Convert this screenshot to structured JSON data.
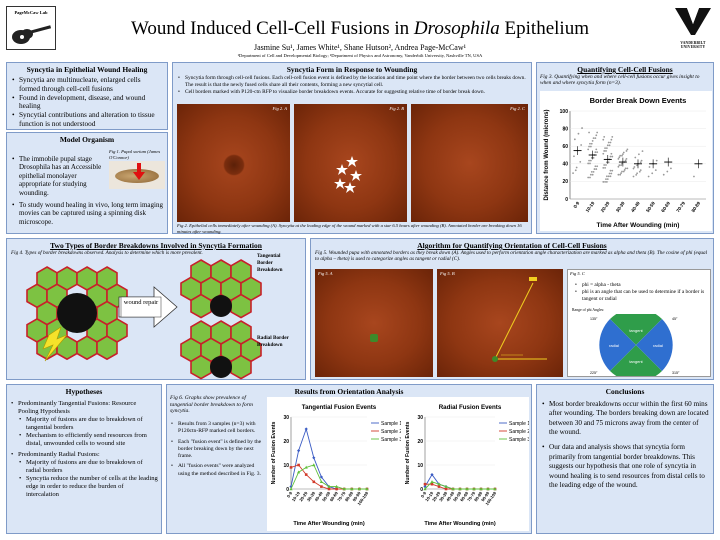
{
  "header": {
    "title_pre": "Wound Induced Cell-Cell Fusions in ",
    "title_em": "Drosophila",
    "title_post": " Epithelium",
    "authors": "Jasmine Su¹, James White¹, Shane Hutson², Andrea Page-McCaw¹",
    "affiliation": "¹Department of Cell and Developmental Biology; ²Department of Physics and Astronomy, Vanderbilt University, Nashville TN, USA",
    "left_logo": "PageMcCaw Lab",
    "right_logo": "VANDERBILT UNIVERSITY"
  },
  "syncytia_epithelial": {
    "title": "Syncytia in Epithelial Wound Healing",
    "bullets": [
      "Syncytia are multinucleate, enlarged cells formed through cell-cell fusions",
      "Found in development, disease, and wound healing",
      "Syncytial contributions and alteration to tissue function is not understood"
    ]
  },
  "model_organism": {
    "title": "Model Organism",
    "fig_caption": "Fig 1. Pupal sorium (James O'Connor)",
    "bullet1": "The immobile pupal stage Drosophila has an Accessible epithelial monolayer appropriate for studying wounding.",
    "bullet2": "To study wound healing in vivo, long term imaging movies can be captured using a spinning disk microscope."
  },
  "syncytia_form": {
    "title": "Syncytia Form in Response to Wounding",
    "bullets": [
      "Syncytia form through cell-cell fusions. Each cell-cell fusion event is defined by the location and time point where the border between two cells breaks down. The result is that the newly fused cells share all their contents, forming a new syncytial cell.",
      "Cell borders marked with P120-ctn RFP to visualize border breakdown events. Accurate for suggesting relative time of border break down."
    ],
    "fig_labels": [
      "Fig 2. A",
      "Fig 2. B",
      "Fig 2. C"
    ],
    "caption": "Fig 2. Epithelial cells immediately after wounding (A). Syncytia at the leading edge of the wound marked with a star 6.5 hours after wounding (B). Annotated border are breaking down 16 minutes after wounding."
  },
  "quantifying": {
    "title": "Quantifying Cell-Cell Fusions",
    "caption": "Fig 3. Quantifying when and where cell-cell fusions occur gives insight to when and where syncytia form (n=3)."
  },
  "two_types": {
    "title": "Two Types of Border Breakdowns Involved in Syncytia Formation",
    "caption": "Fig 4. Types of border breakdowns observed. Analysis to determine which is more prevalent.",
    "wound_repair": "wound repair",
    "tangential_label": "Tangential Border Breakdown",
    "radial_label": "Radial Border Breakdown"
  },
  "algorithm": {
    "title": "Algorithm for Quantifying Orientation of Cell-Cell Fusions",
    "caption": "Fig 5. Wounded pupa with annotated borders as they break down (A). Angles used to perform orientation angle characterization are marked as alpha and theta (B). The cosine of phi (equal to alpha – theta) is used to categorize angles as tangent or radial (C).",
    "fig_labels": [
      "Fig 5. A",
      "Fig 5. B",
      "Fig 5. C"
    ],
    "bullets": [
      "phi = alpha - theta",
      "phi is an angle that can be used to determine if a border is tangent or radial"
    ],
    "range_label": "Range of phi Angles:",
    "pie_labels": [
      "tangent",
      "radial",
      "radial",
      "tangent"
    ],
    "angle_labels": [
      "135°",
      "45°",
      "225°",
      "315°"
    ]
  },
  "hypotheses": {
    "title": "Hypotheses",
    "h1": "Predominantly Tangential Fusions: Resource Pooling Hypothesis",
    "h1_sub": [
      "Majority of fusions are due to breakdown of tangential borders",
      "Mechanism to efficiently send resources from distal, unwounded cells to wound site"
    ],
    "h2": "Predominantly Radial Fusions:",
    "h2_sub": [
      "Majority of fusions are due to breakdown of radial borders",
      "Syncytia reduce the number of cells at the leading edge in order to reduce the burden of intercalation"
    ]
  },
  "results": {
    "title": "Results from Orientation Analysis",
    "caption": "Fig 6. Graphs show prevalence of tangential border breakdown to form syncytia.",
    "bullets": [
      "Results from 3 samples (n=3) with P120ctn-RFP marked cell borders.",
      "Each \"fusion event\" is defined by the border breaking down by the next frame.",
      "All \"fusion events\" were analyzed using the method described in Fig. 3."
    ]
  },
  "conclusions": {
    "title": "Conclusions",
    "paragraphs": [
      "Most border breakdowns occur within the first 60 mins after wounding. The borders breaking down are located between 30 and 75 microns away from the center of the wound.",
      "Our data and analysis shows that syncytia form primarily from tangential border breakdowns. This suggests our hypothesis that one role of syncytia in wound healing is to send resources from distal cells to the leading edge of the wound."
    ]
  },
  "colors": {
    "panel_bg": "#dbe6f6",
    "panel_border": "#7f9bc8",
    "sample1": "#3b5cc4",
    "sample2": "#d23a2a",
    "sample3": "#5fbf3a",
    "hex_green": "#7dc242"
  },
  "chart_data": [
    {
      "type": "scatter",
      "title": "Border Break Down Events",
      "xlabel": "Time After Wounding (min)",
      "ylabel": "Distance from Wound (microns)",
      "categories": [
        "0-9",
        "10-19",
        "20-29",
        "30-39",
        "40-49",
        "50-59",
        "60-69",
        "70-79",
        "80-89"
      ],
      "means": [
        55,
        50,
        45,
        42,
        40,
        40,
        42,
        null,
        40
      ],
      "ylim": [
        0,
        100
      ],
      "yticks": [
        0,
        20,
        40,
        60,
        80,
        100
      ]
    },
    {
      "type": "line",
      "title": "Tangential Fusion Events",
      "xlabel": "Time After Wounding (min)",
      "ylabel": "Number of Fusion Events",
      "categories": [
        "0-9",
        "10-19",
        "20-29",
        "30-39",
        "40-49",
        "50-59",
        "60-69",
        "70-79",
        "80-89",
        "90-99",
        "100-109"
      ],
      "ylim": [
        0,
        30
      ],
      "yticks": [
        0,
        10,
        20,
        30
      ],
      "series": [
        {
          "name": "Sample 1",
          "values": [
            1,
            16,
            25,
            13,
            5,
            1,
            0,
            0,
            0,
            0,
            0
          ]
        },
        {
          "name": "Sample 2",
          "values": [
            9,
            10,
            6,
            3,
            1,
            0,
            0,
            0,
            0,
            0,
            0
          ]
        },
        {
          "name": "Sample 3",
          "values": [
            0,
            7,
            9,
            10,
            3,
            1,
            1,
            0,
            0,
            0,
            0
          ]
        }
      ]
    },
    {
      "type": "line",
      "title": "Radial Fusion Events",
      "xlabel": "Time After Wounding (min)",
      "ylabel": "Number of Fusion Events",
      "categories": [
        "0-9",
        "10-19",
        "20-29",
        "30-39",
        "40-49",
        "50-59",
        "60-69",
        "70-79",
        "80-89",
        "90-99",
        "100-109"
      ],
      "ylim": [
        0,
        30
      ],
      "yticks": [
        0,
        10,
        20,
        30
      ],
      "series": [
        {
          "name": "Sample 1",
          "values": [
            1,
            6,
            2,
            1,
            0,
            0,
            0,
            0,
            0,
            0,
            0
          ]
        },
        {
          "name": "Sample 2",
          "values": [
            2,
            2,
            1,
            0,
            0,
            0,
            0,
            0,
            0,
            0,
            0
          ]
        },
        {
          "name": "Sample 3",
          "values": [
            0,
            3,
            2,
            1,
            0,
            0,
            0,
            0,
            0,
            0,
            0
          ]
        }
      ]
    }
  ]
}
